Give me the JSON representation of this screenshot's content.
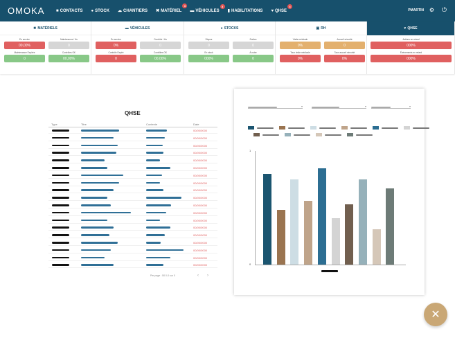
{
  "app": {
    "logo": "OMOKA",
    "user": "PMARTIN"
  },
  "nav": [
    {
      "label": "CONTACTS",
      "icon": "contacts-icon",
      "glyph": "■",
      "badge": ""
    },
    {
      "label": "STOCK",
      "icon": "stock-icon",
      "glyph": "●",
      "badge": ""
    },
    {
      "label": "CHANTIERS",
      "icon": "chantiers-icon",
      "glyph": "☁",
      "badge": ""
    },
    {
      "label": "MATÉRIEL",
      "icon": "tools-icon",
      "glyph": "✖",
      "badge": "3"
    },
    {
      "label": "VÉHICULES",
      "icon": "car-icon",
      "glyph": "▬",
      "badge": "3"
    },
    {
      "label": "HABILITATIONS",
      "icon": "chat-icon",
      "glyph": "▮",
      "badge": ""
    },
    {
      "label": "QHSE",
      "icon": "heart-icon",
      "glyph": "♥",
      "badge": "4"
    }
  ],
  "summary": [
    {
      "title": "MATÉRIELS",
      "icon": "tools-icon",
      "glyph": "✖",
      "active": false,
      "cells": [
        {
          "label": "En service",
          "value": "00,00%",
          "color": "red"
        },
        {
          "label": "Maintenance / Hs",
          "value": "0",
          "color": "grey"
        },
        {
          "label": "Maintenance Expirée",
          "value": "0",
          "color": "green"
        },
        {
          "label": "Contrôles OK",
          "value": "00,00%",
          "color": "green"
        }
      ]
    },
    {
      "title": "VÉHICULES",
      "icon": "car-icon",
      "glyph": "▬",
      "active": false,
      "cells": [
        {
          "label": "En service",
          "value": "0%",
          "color": "red"
        },
        {
          "label": "Contrôle / Hs",
          "value": "0",
          "color": "grey"
        },
        {
          "label": "Contrôle Expiré",
          "value": "0",
          "color": "red"
        },
        {
          "label": "Contrôles OK",
          "value": "00,00%",
          "color": "green"
        }
      ]
    },
    {
      "title": "STOCKS",
      "icon": "stock-icon",
      "glyph": "●",
      "active": false,
      "cells": [
        {
          "label": "Dispos",
          "value": "0",
          "color": "grey"
        },
        {
          "label": "Sorties",
          "value": "0",
          "color": "grey"
        },
        {
          "label": "En stock",
          "value": "000%",
          "color": "green"
        },
        {
          "label": "À noter",
          "value": "0",
          "color": "green"
        }
      ]
    },
    {
      "title": "RH",
      "icon": "people-icon",
      "glyph": "▣",
      "active": false,
      "cells": [
        {
          "label": "Visite médicale",
          "value": "0%",
          "color": "orange"
        },
        {
          "label": "Accueil sécurité",
          "value": "0",
          "color": "orange"
        },
        {
          "label": "Taux visite médicale",
          "value": "0%",
          "color": "red"
        },
        {
          "label": "Taux accueil sécurité",
          "value": "0%",
          "color": "red"
        }
      ]
    },
    {
      "title": "QHSE",
      "icon": "heart-icon",
      "glyph": "♥",
      "active": true,
      "cells": [
        {
          "label": "Actions en retard",
          "value": "000%",
          "color": "red"
        },
        {
          "label": "Évènements en retard",
          "value": "000%",
          "color": "red"
        }
      ]
    }
  ],
  "table": {
    "title": "QHSE",
    "headers": [
      "Type",
      "Titre",
      "Contexte",
      "Date"
    ],
    "rows": [
      {
        "date": "00/00/0000",
        "title_w": 0.65,
        "ctx_w": 0.5
      },
      {
        "date": "00/00/0000",
        "title_w": 0.55,
        "ctx_w": 0.45
      },
      {
        "date": "00/00/0000",
        "title_w": 0.62,
        "ctx_w": 0.4
      },
      {
        "date": "00/00/0000",
        "title_w": 0.6,
        "ctx_w": 0.42
      },
      {
        "date": "00/00/0000",
        "title_w": 0.4,
        "ctx_w": 0.33
      },
      {
        "date": "00/00/0000",
        "title_w": 0.45,
        "ctx_w": 0.58
      },
      {
        "date": "00/00/0000",
        "title_w": 0.72,
        "ctx_w": 0.38
      },
      {
        "date": "00/00/0000",
        "title_w": 0.65,
        "ctx_w": 0.33
      },
      {
        "date": "00/00/0000",
        "title_w": 0.55,
        "ctx_w": 0.42
      },
      {
        "date": "00/00/0000",
        "title_w": 0.45,
        "ctx_w": 0.85
      },
      {
        "date": "00/00/0000",
        "title_w": 0.5,
        "ctx_w": 0.6
      },
      {
        "date": "00/00/0000",
        "title_w": 0.85,
        "ctx_w": 0.48
      },
      {
        "date": "00/00/0000",
        "title_w": 0.45,
        "ctx_w": 0.33
      },
      {
        "date": "00/00/0000",
        "title_w": 0.55,
        "ctx_w": 0.58
      },
      {
        "date": "00/00/0000",
        "title_w": 0.48,
        "ctx_w": 0.45
      },
      {
        "date": "00/00/0000",
        "title_w": 0.62,
        "ctx_w": 0.35
      },
      {
        "date": "00/00/0000",
        "title_w": 0.5,
        "ctx_w": 0.9
      },
      {
        "date": "00/00/0000",
        "title_w": 0.4,
        "ctx_w": 0.58
      },
      {
        "date": "00/00/0000",
        "title_w": 0.55,
        "ctx_w": 0.42
      }
    ],
    "pagination": "Per page : 50    0-0 sur 0",
    "prev_glyph": "‹",
    "next_glyph": "›"
  },
  "chart_data": {
    "type": "bar",
    "yticks": [
      "1",
      "0"
    ],
    "ylim": [
      0,
      1
    ],
    "values": [
      0.8,
      0.48,
      0.75,
      0.56,
      0.85,
      0.41,
      0.53,
      0.75,
      0.31,
      0.67
    ],
    "colors": [
      "#1b5570",
      "#9a7450",
      "#cddde4",
      "#bfa48a",
      "#2c6e92",
      "#d4d4d4",
      "#715f4f",
      "#96b1ba",
      "#d5c7b8",
      "#6d7b77"
    ],
    "legend_colors": [
      "#1b5570",
      "#9a7450",
      "#cddde4",
      "#bfa48a",
      "#2c6e92",
      "#d4d4d4",
      "#715f4f",
      "#96b1ba",
      "#d5c7b8",
      "#6d7b77"
    ]
  },
  "fab": {
    "glyph": "✕"
  }
}
